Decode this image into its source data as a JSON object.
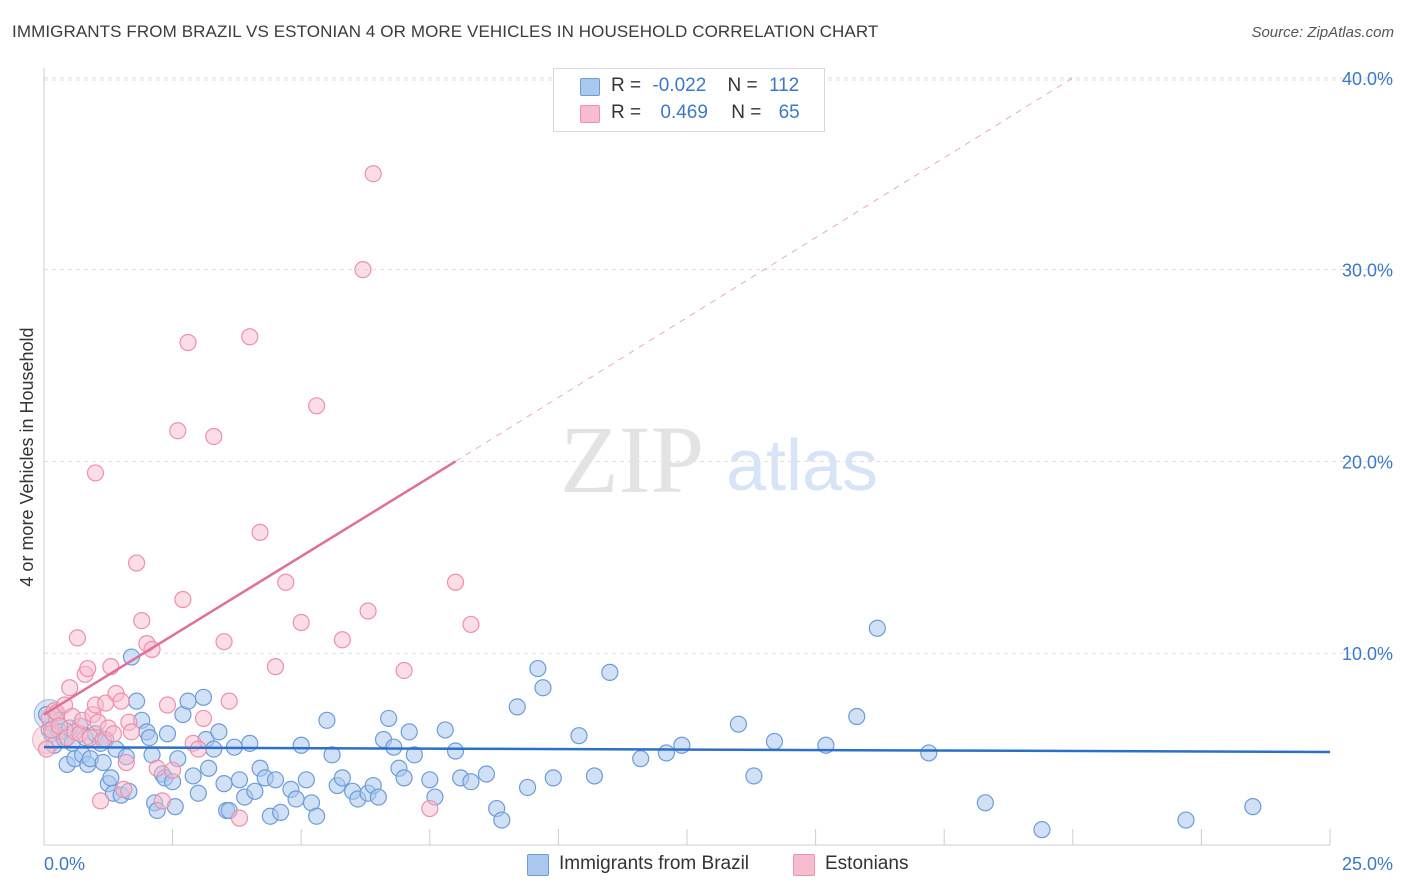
{
  "title": "IMMIGRANTS FROM BRAZIL VS ESTONIAN 4 OR MORE VEHICLES IN HOUSEHOLD CORRELATION CHART",
  "source": "Source: ZipAtlas.com",
  "watermark": {
    "zip": "ZIP",
    "atlas": "atlas"
  },
  "legend_top": {
    "rows": [
      {
        "r_label": "R =",
        "r_value": "-0.022",
        "n_label": "N =",
        "n_value": "112"
      },
      {
        "r_label": "R =",
        "r_value": "0.469",
        "n_label": "N =",
        "n_value": "65"
      }
    ]
  },
  "legend_bottom": {
    "brazil": "Immigrants from Brazil",
    "estonians": "Estonians"
  },
  "colors": {
    "blue_fill": "#aac8ee",
    "blue_stroke": "#6d9bd8",
    "blue_line": "#2c6fca",
    "pink_fill": "#f7bccd",
    "pink_stroke": "#ee8fab",
    "pink_line": "#e0709a",
    "axis_label": "#3b78c7",
    "grid": "#dddddd"
  },
  "chart_data": {
    "type": "scatter",
    "title": "IMMIGRANTS FROM BRAZIL VS ESTONIAN 4 OR MORE VEHICLES IN HOUSEHOLD CORRELATION CHART",
    "xlabel": "",
    "ylabel": "4 or more Vehicles in Household",
    "xlim": [
      0,
      25
    ],
    "ylim": [
      0,
      40
    ],
    "x_tick_labels": [
      "0.0%",
      "25.0%"
    ],
    "y_ticks": [
      10,
      20,
      30,
      40
    ],
    "y_tick_labels": [
      "10.0%",
      "20.0%",
      "30.0%",
      "40.0%"
    ],
    "grid": true,
    "legend_position": "top-center",
    "series": [
      {
        "name": "Immigrants from Brazil",
        "R": -0.022,
        "N": 112,
        "trend": {
          "x0": 0,
          "y0": 5.1,
          "x1": 25,
          "y1": 4.85
        },
        "points": [
          [
            0.05,
            6.8
          ],
          [
            0.1,
            6.0
          ],
          [
            0.15,
            5.8
          ],
          [
            0.2,
            5.2
          ],
          [
            0.25,
            6.5
          ],
          [
            0.3,
            5.9
          ],
          [
            0.4,
            5.5
          ],
          [
            0.45,
            4.2
          ],
          [
            0.5,
            6.1
          ],
          [
            0.55,
            5.3
          ],
          [
            0.6,
            4.5
          ],
          [
            0.7,
            6.2
          ],
          [
            0.75,
            4.7
          ],
          [
            0.8,
            5.6
          ],
          [
            0.85,
            4.2
          ],
          [
            0.9,
            4.5
          ],
          [
            1.0,
            5.8
          ],
          [
            1.1,
            5.3
          ],
          [
            1.15,
            4.3
          ],
          [
            1.2,
            5.5
          ],
          [
            1.25,
            3.2
          ],
          [
            1.3,
            3.5
          ],
          [
            1.35,
            2.7
          ],
          [
            1.4,
            5.0
          ],
          [
            1.5,
            2.6
          ],
          [
            1.6,
            4.6
          ],
          [
            1.65,
            2.8
          ],
          [
            1.7,
            9.8
          ],
          [
            1.8,
            7.5
          ],
          [
            1.9,
            6.5
          ],
          [
            2.0,
            5.9
          ],
          [
            2.05,
            5.6
          ],
          [
            2.1,
            4.7
          ],
          [
            2.15,
            2.2
          ],
          [
            2.2,
            1.8
          ],
          [
            2.3,
            3.7
          ],
          [
            2.35,
            3.5
          ],
          [
            2.4,
            5.8
          ],
          [
            2.5,
            3.3
          ],
          [
            2.55,
            2.0
          ],
          [
            2.6,
            4.5
          ],
          [
            2.7,
            6.8
          ],
          [
            2.8,
            7.5
          ],
          [
            2.9,
            3.6
          ],
          [
            3.0,
            2.7
          ],
          [
            3.1,
            7.7
          ],
          [
            3.15,
            5.5
          ],
          [
            3.2,
            4.0
          ],
          [
            3.3,
            5.0
          ],
          [
            3.4,
            5.9
          ],
          [
            3.5,
            3.2
          ],
          [
            3.55,
            1.8
          ],
          [
            3.6,
            1.8
          ],
          [
            3.7,
            5.1
          ],
          [
            3.8,
            3.4
          ],
          [
            3.9,
            2.5
          ],
          [
            4.0,
            5.3
          ],
          [
            4.1,
            2.8
          ],
          [
            4.2,
            4.0
          ],
          [
            4.3,
            3.5
          ],
          [
            4.4,
            1.5
          ],
          [
            4.5,
            3.4
          ],
          [
            4.6,
            1.7
          ],
          [
            4.8,
            2.9
          ],
          [
            4.9,
            2.4
          ],
          [
            5.0,
            5.2
          ],
          [
            5.1,
            3.4
          ],
          [
            5.2,
            2.2
          ],
          [
            5.3,
            1.5
          ],
          [
            5.5,
            6.5
          ],
          [
            5.6,
            4.7
          ],
          [
            5.7,
            3.1
          ],
          [
            5.8,
            3.5
          ],
          [
            6.0,
            2.8
          ],
          [
            6.1,
            2.4
          ],
          [
            6.3,
            2.7
          ],
          [
            6.4,
            3.1
          ],
          [
            6.5,
            2.5
          ],
          [
            6.6,
            5.5
          ],
          [
            6.7,
            6.6
          ],
          [
            6.8,
            5.1
          ],
          [
            6.9,
            4.0
          ],
          [
            7.0,
            3.5
          ],
          [
            7.1,
            5.9
          ],
          [
            7.2,
            4.7
          ],
          [
            7.5,
            3.4
          ],
          [
            7.6,
            2.5
          ],
          [
            7.8,
            6.0
          ],
          [
            8.0,
            4.9
          ],
          [
            8.1,
            3.5
          ],
          [
            8.3,
            3.3
          ],
          [
            8.6,
            3.7
          ],
          [
            8.8,
            1.9
          ],
          [
            8.9,
            1.3
          ],
          [
            9.2,
            7.2
          ],
          [
            9.4,
            3.0
          ],
          [
            9.6,
            9.2
          ],
          [
            9.7,
            8.2
          ],
          [
            9.9,
            3.5
          ],
          [
            10.4,
            5.7
          ],
          [
            10.7,
            3.6
          ],
          [
            11.0,
            9.0
          ],
          [
            11.6,
            4.5
          ],
          [
            12.1,
            4.8
          ],
          [
            12.4,
            5.2
          ],
          [
            13.5,
            6.3
          ],
          [
            13.8,
            3.6
          ],
          [
            14.2,
            5.4
          ],
          [
            15.2,
            5.2
          ],
          [
            15.8,
            6.7
          ],
          [
            16.2,
            11.3
          ],
          [
            17.2,
            4.8
          ],
          [
            18.3,
            2.2
          ],
          [
            19.4,
            0.8
          ],
          [
            22.2,
            1.3
          ],
          [
            23.5,
            2.0
          ]
        ]
      },
      {
        "name": "Estonians",
        "R": 0.469,
        "N": 65,
        "trend": {
          "x0": 0,
          "y0": 6.8,
          "x1": 8.0,
          "y1": 20.0,
          "dash_x1": 20.0,
          "dash_y1": 40.0
        },
        "points": [
          [
            0.05,
            5.0
          ],
          [
            0.1,
            6.6
          ],
          [
            0.15,
            6.0
          ],
          [
            0.2,
            7.0
          ],
          [
            0.25,
            6.9
          ],
          [
            0.3,
            6.2
          ],
          [
            0.4,
            7.3
          ],
          [
            0.45,
            5.6
          ],
          [
            0.5,
            8.2
          ],
          [
            0.55,
            6.7
          ],
          [
            0.6,
            5.9
          ],
          [
            0.65,
            10.8
          ],
          [
            0.7,
            5.8
          ],
          [
            0.75,
            6.5
          ],
          [
            0.8,
            8.9
          ],
          [
            0.85,
            9.2
          ],
          [
            0.9,
            5.6
          ],
          [
            0.95,
            6.8
          ],
          [
            1.0,
            7.3
          ],
          [
            1.05,
            6.4
          ],
          [
            1.1,
            2.3
          ],
          [
            1.15,
            5.5
          ],
          [
            1.2,
            7.4
          ],
          [
            1.25,
            6.1
          ],
          [
            1.3,
            9.3
          ],
          [
            1.35,
            5.8
          ],
          [
            1.4,
            7.9
          ],
          [
            1.5,
            7.5
          ],
          [
            1.55,
            2.9
          ],
          [
            1.6,
            4.3
          ],
          [
            1.65,
            6.4
          ],
          [
            1.7,
            5.9
          ],
          [
            1.8,
            14.7
          ],
          [
            1.9,
            11.7
          ],
          [
            2.0,
            10.5
          ],
          [
            2.1,
            10.2
          ],
          [
            2.2,
            4.0
          ],
          [
            2.3,
            2.3
          ],
          [
            2.4,
            7.3
          ],
          [
            2.5,
            3.9
          ],
          [
            2.6,
            21.6
          ],
          [
            2.7,
            12.8
          ],
          [
            2.8,
            26.2
          ],
          [
            2.9,
            5.3
          ],
          [
            3.0,
            5.0
          ],
          [
            3.1,
            6.6
          ],
          [
            3.3,
            21.3
          ],
          [
            3.5,
            10.6
          ],
          [
            3.6,
            7.5
          ],
          [
            3.8,
            1.4
          ],
          [
            4.0,
            26.5
          ],
          [
            4.2,
            16.3
          ],
          [
            4.5,
            9.3
          ],
          [
            4.7,
            13.7
          ],
          [
            5.0,
            11.6
          ],
          [
            5.3,
            22.9
          ],
          [
            5.8,
            10.7
          ],
          [
            6.2,
            30.0
          ],
          [
            6.3,
            12.2
          ],
          [
            6.4,
            35.0
          ],
          [
            7.0,
            9.1
          ],
          [
            7.5,
            1.9
          ],
          [
            8.0,
            13.7
          ],
          [
            8.3,
            11.5
          ],
          [
            1.0,
            19.4
          ]
        ]
      }
    ]
  }
}
